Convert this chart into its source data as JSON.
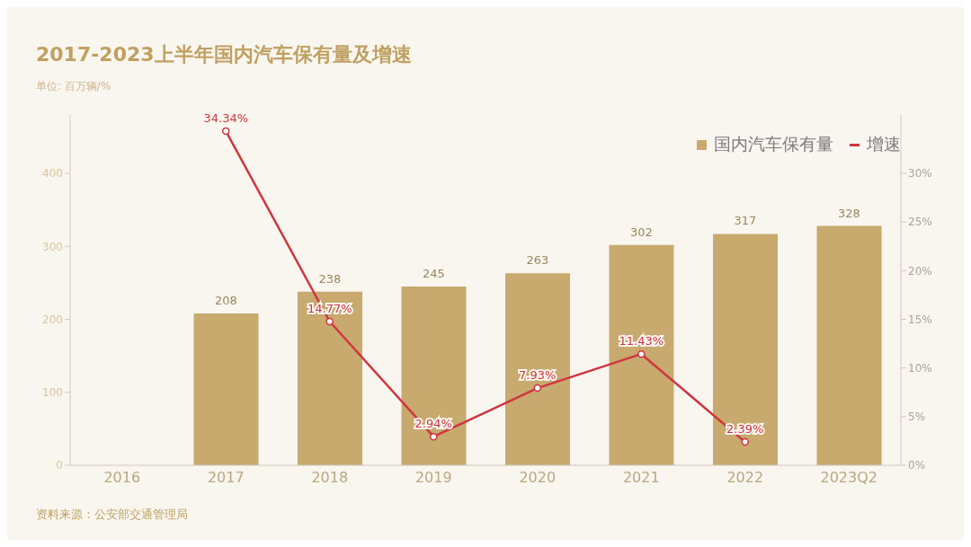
{
  "chart_data": {
    "type": "bar",
    "title": "2017-2023上半年国内汽车保有量及增速",
    "subtitle": "单位: 百万辆/%",
    "categories": [
      "2016",
      "2017",
      "2018",
      "2019",
      "2020",
      "2021",
      "2022",
      "2023Q2"
    ],
    "series": [
      {
        "name": "国内汽车保有量",
        "color": "#c8a96e",
        "values": [
          null,
          208,
          238,
          245,
          263,
          302,
          317,
          328
        ],
        "value_labels": [
          null,
          "208",
          "238",
          "245",
          "263",
          "302",
          "317",
          "328"
        ]
      },
      {
        "name": "增速",
        "type": "line",
        "axis": "y2",
        "color": "#d0353f",
        "values": [
          null,
          34.34,
          14.77,
          2.94,
          7.93,
          11.43,
          2.39,
          null
        ],
        "value_labels": [
          null,
          "34.34%",
          "14.77%",
          "2.94%",
          "7.93%",
          "11.43%",
          "2.39%",
          null
        ]
      }
    ],
    "ylim": [
      0,
      480
    ],
    "yticks": [
      0,
      100,
      200,
      300,
      400
    ],
    "y2lim": [
      0,
      36
    ],
    "y2ticks": [
      {
        "value": 0,
        "label": "0%"
      },
      {
        "value": 5,
        "label": "5%"
      },
      {
        "value": 10,
        "label": "10%"
      },
      {
        "value": 15,
        "label": "15%"
      },
      {
        "value": 20,
        "label": "20%"
      },
      {
        "value": 25,
        "label": "25%"
      },
      {
        "value": 30,
        "label": "30%"
      }
    ],
    "grid": false,
    "legend": "top right",
    "marker": "circle",
    "annotations": [
      "资料来源：公安部交通管理局"
    ]
  }
}
